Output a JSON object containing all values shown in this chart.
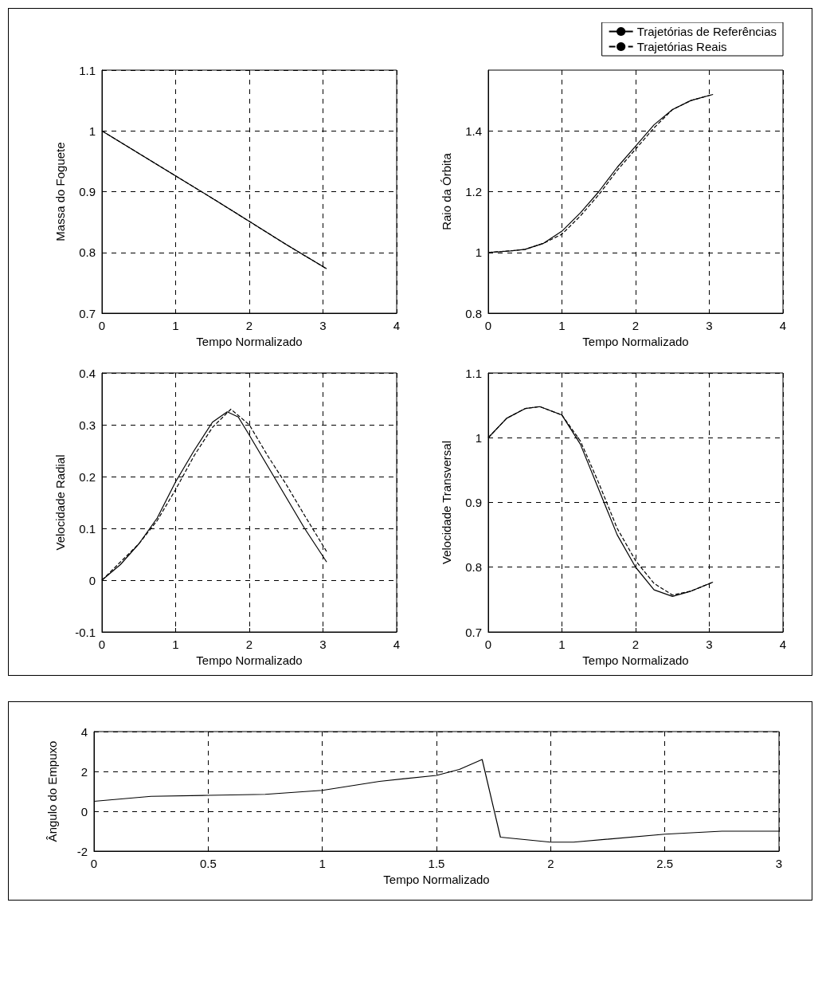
{
  "chart_data": [
    {
      "type": "line",
      "xlabel": "Tempo Normalizado",
      "ylabel": "Massa do Foguete",
      "xlim": [
        0,
        4
      ],
      "xticks": [
        0,
        1,
        2,
        3,
        4
      ],
      "ylim": [
        0.7,
        1.1
      ],
      "yticks": [
        0.7,
        0.8,
        0.9,
        1,
        1.1
      ],
      "grid": true,
      "series": [
        {
          "color": "#000000",
          "line_style": "solid",
          "x": [
            0,
            0.5,
            1,
            1.5,
            2,
            2.5,
            3.05
          ],
          "values": [
            1.0,
            0.963,
            0.926,
            0.889,
            0.851,
            0.813,
            0.773
          ]
        },
        {
          "color": "#000000",
          "line_style": "dashed",
          "x": [
            0,
            0.5,
            1,
            1.5,
            2,
            2.5,
            3.05
          ],
          "values": [
            1.0,
            0.963,
            0.926,
            0.889,
            0.851,
            0.813,
            0.773
          ]
        }
      ]
    },
    {
      "type": "line",
      "xlabel": "Tempo Normalizado",
      "ylabel": "Raio da Órbita",
      "xlim": [
        0,
        4
      ],
      "xticks": [
        0,
        1,
        2,
        3,
        4
      ],
      "ylim": [
        0.8,
        1.6
      ],
      "yticks": [
        0.8,
        1,
        1.2,
        1.4
      ],
      "grid": true,
      "legend": "top right",
      "series": [
        {
          "name": "Trajetórias de Referências",
          "color": "#000000",
          "line_style": "solid",
          "x": [
            0,
            0.3,
            0.5,
            0.75,
            1,
            1.25,
            1.5,
            1.75,
            2,
            2.25,
            2.5,
            2.75,
            3.05
          ],
          "values": [
            1.0,
            1.005,
            1.01,
            1.03,
            1.07,
            1.13,
            1.2,
            1.28,
            1.35,
            1.42,
            1.47,
            1.5,
            1.52
          ]
        },
        {
          "name": "Trajetórias Reais",
          "color": "#000000",
          "line_style": "dashed",
          "x": [
            0,
            0.3,
            0.5,
            0.75,
            1,
            1.25,
            1.5,
            1.75,
            2,
            2.25,
            2.5,
            2.75,
            3.05
          ],
          "values": [
            1.0,
            1.005,
            1.01,
            1.03,
            1.06,
            1.12,
            1.19,
            1.27,
            1.34,
            1.41,
            1.47,
            1.5,
            1.52
          ]
        }
      ]
    },
    {
      "type": "line",
      "xlabel": "Tempo Normalizado",
      "ylabel": "Velocidade Radial",
      "xlim": [
        0,
        4
      ],
      "xticks": [
        0,
        1,
        2,
        3,
        4
      ],
      "ylim": [
        -0.1,
        0.4
      ],
      "yticks": [
        -0.1,
        0,
        0.1,
        0.2,
        0.3,
        0.4
      ],
      "grid": true,
      "series": [
        {
          "color": "#000000",
          "line_style": "solid",
          "x": [
            0,
            0.25,
            0.5,
            0.75,
            1,
            1.25,
            1.5,
            1.7,
            1.85,
            2,
            2.25,
            2.5,
            2.75,
            3.05
          ],
          "values": [
            0,
            0.03,
            0.07,
            0.12,
            0.19,
            0.25,
            0.305,
            0.325,
            0.315,
            0.28,
            0.22,
            0.16,
            0.1,
            0.035
          ]
        },
        {
          "color": "#000000",
          "line_style": "dashed",
          "x": [
            0,
            0.5,
            0.75,
            1,
            1.25,
            1.5,
            1.75,
            2,
            2.25,
            2.5,
            2.75,
            3.05
          ],
          "values": [
            0,
            0.07,
            0.115,
            0.175,
            0.24,
            0.295,
            0.33,
            0.3,
            0.24,
            0.185,
            0.125,
            0.055
          ]
        }
      ]
    },
    {
      "type": "line",
      "xlabel": "Tempo Normalizado",
      "ylabel": "Velocidade Transversal",
      "xlim": [
        0,
        4
      ],
      "xticks": [
        0,
        1,
        2,
        3,
        4
      ],
      "ylim": [
        0.7,
        1.1
      ],
      "yticks": [
        0.7,
        0.8,
        0.9,
        1,
        1.1
      ],
      "grid": true,
      "series": [
        {
          "color": "#000000",
          "line_style": "solid",
          "x": [
            0,
            0.25,
            0.5,
            0.7,
            1,
            1.25,
            1.5,
            1.75,
            2,
            2.25,
            2.5,
            2.75,
            3.05
          ],
          "values": [
            1.0,
            1.03,
            1.045,
            1.048,
            1.035,
            0.99,
            0.92,
            0.85,
            0.8,
            0.765,
            0.755,
            0.763,
            0.777
          ]
        },
        {
          "color": "#000000",
          "line_style": "dashed",
          "x": [
            0,
            0.25,
            0.5,
            0.7,
            1,
            1.25,
            1.5,
            1.75,
            2,
            2.25,
            2.5,
            2.75,
            3.05
          ],
          "values": [
            1.0,
            1.03,
            1.045,
            1.048,
            1.035,
            0.995,
            0.93,
            0.86,
            0.81,
            0.775,
            0.757,
            0.763,
            0.777
          ]
        }
      ]
    },
    {
      "type": "line",
      "xlabel": "Tempo Normalizado",
      "ylabel": "Ângulo do Empuxo",
      "xlim": [
        0,
        3
      ],
      "xticks": [
        0,
        0.5,
        1,
        1.5,
        2,
        2.5,
        3
      ],
      "ylim": [
        -2,
        4
      ],
      "yticks": [
        -2,
        0,
        2,
        4
      ],
      "grid": true,
      "series": [
        {
          "color": "#000000",
          "line_style": "solid",
          "x": [
            0,
            0.25,
            0.5,
            0.75,
            1,
            1.25,
            1.5,
            1.6,
            1.7,
            1.78,
            2,
            2.1,
            2.5,
            2.75,
            3
          ],
          "values": [
            0.5,
            0.75,
            0.8,
            0.85,
            1.05,
            1.5,
            1.8,
            2.1,
            2.6,
            -1.3,
            -1.55,
            -1.55,
            -1.15,
            -1.0,
            -1.0
          ]
        }
      ]
    }
  ]
}
